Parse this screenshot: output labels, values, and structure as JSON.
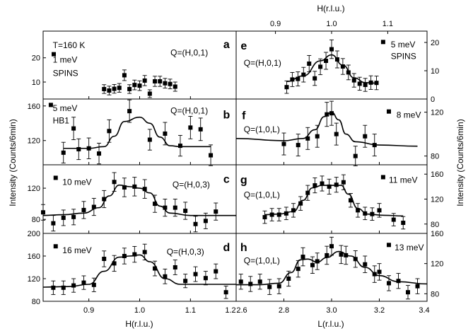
{
  "chart_data": {
    "type": "scatter",
    "figure": {
      "ylabel_left": "Intensity (Counts/6min)",
      "ylabel_right": "Intensity (Counts/6min)",
      "xlabel_left_bottom": "H(r.l.u.)",
      "xlabel_right_bottom": "L(r.l.u.)",
      "xlabel_right_top": "H(r.l.u.)",
      "xticks_left": [
        "0.9",
        "1.0",
        "1.1",
        "1.2"
      ],
      "xticks_right_bottom": [
        "2.6",
        "2.8",
        "3.0",
        "3.2",
        "3.4"
      ],
      "xticks_right_top": [
        "0.9",
        "1.0",
        "1.1"
      ]
    },
    "panels": [
      {
        "id": "a",
        "side": "left",
        "row": 0,
        "xlim": [
          0.81,
          1.19
        ],
        "ylim": [
          3,
          31
        ],
        "yticks": [
          10,
          20
        ],
        "texts": [
          "T=160 K",
          "1 meV",
          "SPINS",
          "Q=(H,0,1)"
        ],
        "points": [
          [
            0.93,
            7.1,
            1.8
          ],
          [
            0.94,
            6.5,
            1.8
          ],
          [
            0.95,
            7.2,
            1.8
          ],
          [
            0.96,
            7.6,
            1.8
          ],
          [
            0.97,
            12.8,
            2.2
          ],
          [
            0.98,
            7.1,
            1.8
          ],
          [
            0.99,
            8.8,
            2.0
          ],
          [
            1.0,
            8.5,
            2.0
          ],
          [
            1.01,
            10.6,
            2.1
          ],
          [
            1.02,
            5.2,
            1.6
          ],
          [
            1.03,
            10.3,
            2.1
          ],
          [
            1.04,
            10.3,
            2.1
          ],
          [
            1.05,
            9.5,
            2.0
          ],
          [
            1.06,
            9.2,
            2.0
          ],
          [
            1.07,
            8.1,
            1.9
          ]
        ],
        "fit": []
      },
      {
        "id": "b",
        "side": "left",
        "row": 1,
        "xlim": [
          0.81,
          1.19
        ],
        "ylim": [
          92,
          168
        ],
        "yticks": [
          120,
          160
        ],
        "texts": [
          "5 meV",
          "HB1",
          "Q=(H,0,1)"
        ],
        "points": [
          [
            0.85,
            106,
            12
          ],
          [
            0.87,
            134,
            13
          ],
          [
            0.88,
            110,
            12
          ],
          [
            0.9,
            111,
            12
          ],
          [
            0.92,
            105,
            12
          ],
          [
            0.94,
            131,
            13
          ],
          [
            0.98,
            154,
            13
          ],
          [
            1.02,
            121,
            12
          ],
          [
            1.05,
            128,
            13
          ],
          [
            1.08,
            114,
            12
          ],
          [
            1.1,
            135,
            13
          ],
          [
            1.12,
            133,
            13
          ],
          [
            1.14,
            103,
            12
          ]
        ],
        "fit": [
          [
            0.85,
            111
          ],
          [
            0.9,
            111
          ],
          [
            0.93,
            113
          ],
          [
            0.95,
            125
          ],
          [
            0.97,
            142
          ],
          [
            1.0,
            147
          ],
          [
            1.02,
            140
          ],
          [
            1.04,
            124
          ],
          [
            1.06,
            114
          ],
          [
            1.08,
            113
          ],
          [
            1.14,
            113
          ]
        ]
      },
      {
        "id": "c",
        "side": "left",
        "row": 2,
        "xlim": [
          0.81,
          1.19
        ],
        "ylim": [
          62,
          150
        ],
        "yticks": [
          80,
          120
        ],
        "texts": [
          "10 meV",
          "Q=(H,0,3)"
        ],
        "points": [
          [
            0.81,
            89,
            10
          ],
          [
            0.83,
            75,
            10
          ],
          [
            0.85,
            82,
            10
          ],
          [
            0.87,
            83,
            10
          ],
          [
            0.89,
            92,
            11
          ],
          [
            0.91,
            96,
            11
          ],
          [
            0.93,
            106,
            11
          ],
          [
            0.95,
            128,
            12
          ],
          [
            0.97,
            121,
            12
          ],
          [
            0.99,
            122,
            12
          ],
          [
            1.01,
            119,
            12
          ],
          [
            1.03,
            100,
            11
          ],
          [
            1.05,
            95,
            11
          ],
          [
            1.07,
            95,
            11
          ],
          [
            1.09,
            91,
            11
          ],
          [
            1.11,
            74,
            10
          ],
          [
            1.13,
            78,
            10
          ],
          [
            1.15,
            90,
            11
          ]
        ],
        "fit": [
          [
            0.81,
            85
          ],
          [
            0.85,
            86
          ],
          [
            0.89,
            88
          ],
          [
            0.92,
            95
          ],
          [
            0.94,
            110
          ],
          [
            0.96,
            124
          ],
          [
            0.98,
            122
          ],
          [
            1.0,
            120
          ],
          [
            1.02,
            114
          ],
          [
            1.04,
            97
          ],
          [
            1.06,
            88
          ],
          [
            1.1,
            85
          ],
          [
            1.19,
            85
          ]
        ]
      },
      {
        "id": "d",
        "side": "left",
        "row": 3,
        "xlim": [
          0.81,
          1.19
        ],
        "ylim": [
          80,
          200
        ],
        "yticks": [
          80,
          120,
          160,
          200
        ],
        "texts": [
          "16 meV",
          "Q=(H,0,3)"
        ],
        "points": [
          [
            0.83,
            104,
            12
          ],
          [
            0.85,
            104,
            12
          ],
          [
            0.87,
            108,
            12
          ],
          [
            0.89,
            113,
            12
          ],
          [
            0.91,
            109,
            12
          ],
          [
            0.93,
            155,
            14
          ],
          [
            0.95,
            147,
            14
          ],
          [
            0.97,
            160,
            14
          ],
          [
            0.99,
            163,
            14
          ],
          [
            1.01,
            167,
            14
          ],
          [
            1.03,
            138,
            13
          ],
          [
            1.05,
            124,
            13
          ],
          [
            1.07,
            140,
            13
          ],
          [
            1.09,
            116,
            12
          ],
          [
            1.11,
            128,
            13
          ],
          [
            1.13,
            121,
            12
          ],
          [
            1.15,
            133,
            13
          ],
          [
            1.17,
            96,
            11
          ]
        ],
        "fit": [
          [
            0.81,
            105
          ],
          [
            0.86,
            106
          ],
          [
            0.9,
            110
          ],
          [
            0.93,
            133
          ],
          [
            0.96,
            158
          ],
          [
            0.98,
            160
          ],
          [
            1.0,
            162
          ],
          [
            1.02,
            150
          ],
          [
            1.05,
            120
          ],
          [
            1.08,
            110
          ],
          [
            1.19,
            110
          ]
        ]
      },
      {
        "id": "e",
        "side": "right",
        "row": 0,
        "xlim": [
          0.83,
          1.17
        ],
        "ylim": [
          0,
          24
        ],
        "yticks": [
          0,
          10,
          20
        ],
        "texts": [
          "5 meV",
          "SPINS",
          "Q=(H,0,1)"
        ],
        "points": [
          [
            0.92,
            4.2,
            2.2
          ],
          [
            0.93,
            6.9,
            2.5
          ],
          [
            0.94,
            7.1,
            2.5
          ],
          [
            0.95,
            8.6,
            2.6
          ],
          [
            0.96,
            12.5,
            2.9
          ],
          [
            0.97,
            7.3,
            2.5
          ],
          [
            0.98,
            11.4,
            2.8
          ],
          [
            0.99,
            13.5,
            3.0
          ],
          [
            1.0,
            17.6,
            3.3
          ],
          [
            1.01,
            14.0,
            3.0
          ],
          [
            1.02,
            11.5,
            2.8
          ],
          [
            1.03,
            9.4,
            2.6
          ],
          [
            1.04,
            6.6,
            2.4
          ],
          [
            1.05,
            5.4,
            2.3
          ],
          [
            1.06,
            5.0,
            2.3
          ],
          [
            1.07,
            5.8,
            2.4
          ],
          [
            1.08,
            5.7,
            2.4
          ]
        ],
        "fit": [
          [
            0.92,
            6.2
          ],
          [
            0.95,
            8.2
          ],
          [
            0.98,
            13.5
          ],
          [
            1.0,
            15.6
          ],
          [
            1.02,
            12.0
          ],
          [
            1.04,
            7.5
          ],
          [
            1.06,
            5.8
          ],
          [
            1.08,
            5.6
          ]
        ]
      },
      {
        "id": "f",
        "side": "right",
        "row": 1,
        "xlim": [
          2.6,
          3.4
        ],
        "ylim": [
          72,
          132
        ],
        "yticks": [
          80,
          120
        ],
        "texts": [
          "8 meV",
          "Q=(1,0,L)"
        ],
        "points": [
          [
            2.8,
            91,
            10
          ],
          [
            2.86,
            90,
            10
          ],
          [
            2.9,
            96,
            10
          ],
          [
            2.94,
            98,
            10
          ],
          [
            2.98,
            118,
            11
          ],
          [
            3.0,
            119,
            11
          ],
          [
            3.02,
            100,
            10
          ],
          [
            3.1,
            80,
            9
          ],
          [
            3.14,
            98,
            10
          ],
          [
            3.18,
            90,
            10
          ]
        ],
        "fit": [
          [
            2.6,
            96
          ],
          [
            2.8,
            94
          ],
          [
            2.88,
            96
          ],
          [
            2.93,
            104
          ],
          [
            2.97,
            116
          ],
          [
            3.0,
            120
          ],
          [
            3.03,
            113
          ],
          [
            3.06,
            100
          ],
          [
            3.1,
            93
          ],
          [
            3.2,
            90
          ],
          [
            3.36,
            89
          ]
        ]
      },
      {
        "id": "g",
        "side": "right",
        "row": 2,
        "xlim": [
          2.6,
          3.4
        ],
        "ylim": [
          65,
          175
        ],
        "yticks": [
          80,
          120,
          160
        ],
        "texts": [
          "11 meV",
          "Q=(1,0,L)"
        ],
        "points": [
          [
            2.72,
            91,
            10
          ],
          [
            2.75,
            95,
            10
          ],
          [
            2.78,
            95,
            10
          ],
          [
            2.81,
            97,
            10
          ],
          [
            2.84,
            102,
            11
          ],
          [
            2.87,
            113,
            11
          ],
          [
            2.9,
            130,
            12
          ],
          [
            2.93,
            142,
            12
          ],
          [
            2.96,
            145,
            12
          ],
          [
            2.99,
            140,
            12
          ],
          [
            3.02,
            143,
            12
          ],
          [
            3.05,
            147,
            12
          ],
          [
            3.08,
            118,
            11
          ],
          [
            3.11,
            102,
            11
          ],
          [
            3.14,
            97,
            10
          ],
          [
            3.17,
            96,
            10
          ],
          [
            3.2,
            102,
            11
          ],
          [
            3.26,
            87,
            10
          ],
          [
            3.3,
            82,
            10
          ]
        ],
        "fit": [
          [
            2.72,
            95
          ],
          [
            2.78,
            96
          ],
          [
            2.84,
            100
          ],
          [
            2.88,
            118
          ],
          [
            2.92,
            138
          ],
          [
            2.96,
            142
          ],
          [
            3.0,
            142
          ],
          [
            3.04,
            142
          ],
          [
            3.07,
            128
          ],
          [
            3.11,
            105
          ],
          [
            3.15,
            96
          ],
          [
            3.22,
            94
          ],
          [
            3.3,
            93
          ]
        ]
      },
      {
        "id": "h",
        "side": "right",
        "row": 3,
        "xlim": [
          2.6,
          3.4
        ],
        "ylim": [
          70,
          160
        ],
        "yticks": [
          80,
          120,
          160
        ],
        "texts": [
          "13 meV",
          "Q=(1,0,L)"
        ],
        "points": [
          [
            2.62,
            96,
            10
          ],
          [
            2.66,
            93,
            10
          ],
          [
            2.7,
            96,
            10
          ],
          [
            2.74,
            89,
            10
          ],
          [
            2.78,
            90,
            10
          ],
          [
            2.82,
            100,
            10
          ],
          [
            2.86,
            113,
            11
          ],
          [
            2.88,
            129,
            12
          ],
          [
            2.92,
            118,
            11
          ],
          [
            2.94,
            123,
            11
          ],
          [
            2.98,
            131,
            12
          ],
          [
            3.0,
            143,
            12
          ],
          [
            3.04,
            132,
            12
          ],
          [
            3.06,
            131,
            12
          ],
          [
            3.1,
            126,
            11
          ],
          [
            3.14,
            119,
            11
          ],
          [
            3.18,
            106,
            11
          ],
          [
            3.2,
            109,
            11
          ],
          [
            3.24,
            94,
            10
          ],
          [
            3.28,
            97,
            10
          ],
          [
            3.32,
            82,
            9
          ],
          [
            3.36,
            90,
            10
          ]
        ],
        "fit": [
          [
            2.6,
            92
          ],
          [
            2.7,
            92
          ],
          [
            2.78,
            94
          ],
          [
            2.83,
            108
          ],
          [
            2.87,
            125
          ],
          [
            2.9,
            126
          ],
          [
            2.94,
            122
          ],
          [
            2.98,
            128
          ],
          [
            3.03,
            136
          ],
          [
            3.08,
            130
          ],
          [
            3.14,
            115
          ],
          [
            3.2,
            104
          ],
          [
            3.28,
            96
          ],
          [
            3.4,
            93
          ]
        ]
      }
    ]
  }
}
